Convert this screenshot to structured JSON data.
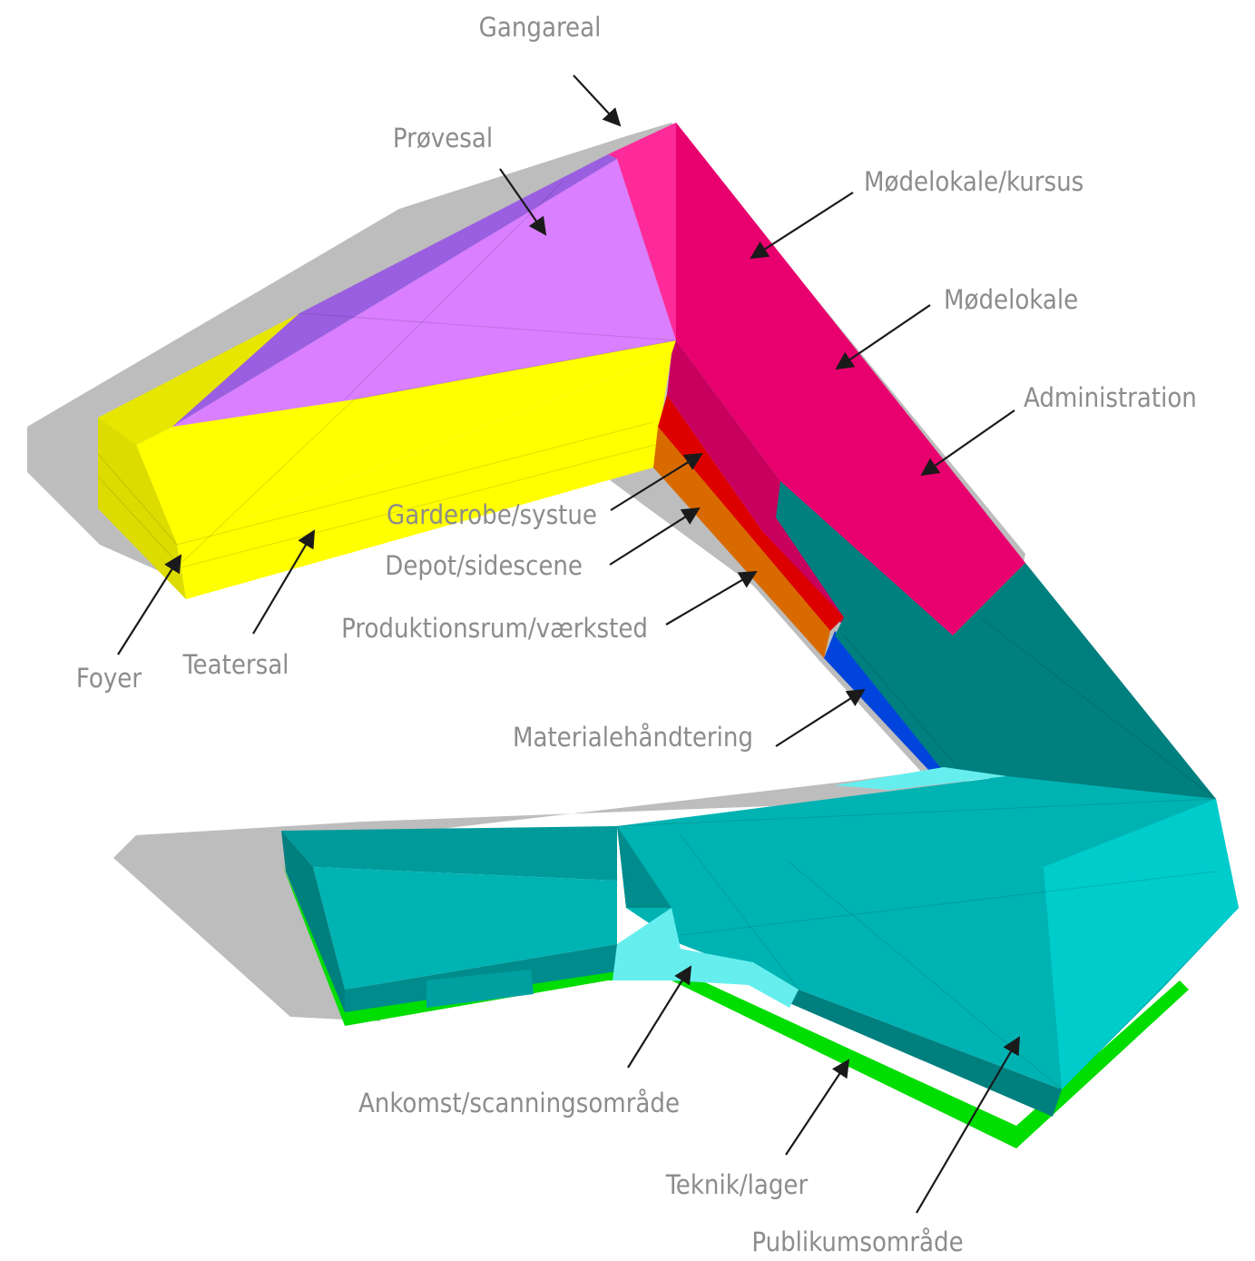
{
  "colors": {
    "shadow": "#bdbdbd",
    "teatersal": "#ffff00",
    "foyer": "#e6e600",
    "provesal": "#d97fff",
    "provesal_side": "#9a5fe0",
    "modelokale": "#e8006e",
    "modelokale_dark": "#c8005e",
    "garderobe": "#dd0000",
    "depot": "#d96a00",
    "materiale": "#0044dd",
    "publikum": "#00b3b3",
    "publikum_light": "#00cccc",
    "publikum_dark": "#007f7f",
    "ankomst": "#66eeee",
    "teknik": "#00dd00",
    "label": "#8c8c8c",
    "arrow": "#1a1a1a"
  },
  "labels": {
    "gangareal": "Gangareal",
    "provesal": "Prøvesal",
    "modelokale_kursus": "Mødelokale/kursus",
    "modelokale": "Mødelokale",
    "administration": "Administration",
    "garderobe": "Garderobe/systue",
    "depot": "Depot/sidescene",
    "produktion": "Produktionsrum/værksted",
    "foyer": "Foyer",
    "teatersal": "Teatersal",
    "materiale": "Materialehåndtering",
    "ankomst": "Ankomst/scanningsområde",
    "teknik": "Teknik/lager",
    "publikum": "Publikumsområde"
  }
}
